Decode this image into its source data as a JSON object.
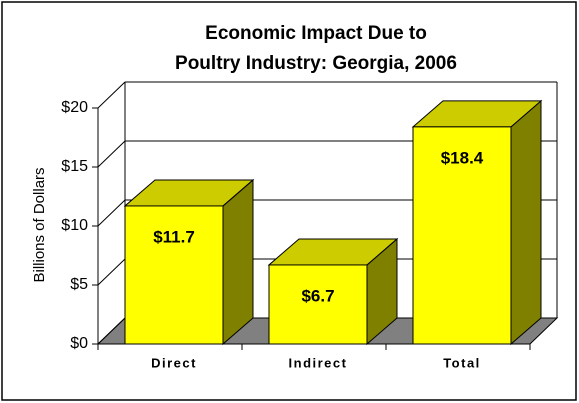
{
  "chart_data": {
    "type": "bar3d",
    "title": [
      "Economic Impact Due to",
      "Poultry Industry: Georgia,  2006"
    ],
    "y_label": "Billions of Dollars",
    "categories": [
      "Direct",
      "Indirect",
      "Total"
    ],
    "values": [
      11.7,
      6.7,
      18.4
    ],
    "value_labels": [
      "$11.7",
      "$6.7",
      "$18.4"
    ],
    "color": "#ffff00",
    "ylim": [
      0,
      20
    ],
    "yticks": [
      {
        "value": 0,
        "label": "$0"
      },
      {
        "value": 5,
        "label": "$5"
      },
      {
        "value": 10,
        "label": "$10"
      },
      {
        "value": 15,
        "label": "$15"
      },
      {
        "value": 20,
        "label": "$20"
      }
    ],
    "grid": true
  }
}
